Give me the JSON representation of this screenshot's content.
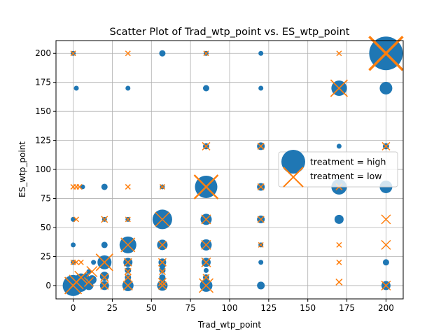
{
  "chart_data": {
    "type": "scatter",
    "title": "Scatter Plot of Trad_wtp_point vs. ES_wtp_point",
    "xlabel": "Trad_wtp_point",
    "ylabel": "ES_wtp_point",
    "xlim": [
      -11,
      211
    ],
    "ylim": [
      -11.5,
      211
    ],
    "xticks": [
      0,
      25,
      50,
      75,
      100,
      125,
      150,
      175,
      200
    ],
    "yticks": [
      0,
      25,
      50,
      75,
      100,
      125,
      150,
      175,
      200
    ],
    "grid": true,
    "legend_position": "center-right",
    "size_unit": "marker diameter (relative)",
    "series": [
      {
        "name": "treatment = high",
        "marker": "circle",
        "color": "#1f77b4",
        "points": [
          {
            "x": 0,
            "y": 200,
            "size": 7
          },
          {
            "x": 57,
            "y": 200,
            "size": 9
          },
          {
            "x": 85,
            "y": 200,
            "size": 7
          },
          {
            "x": 120,
            "y": 200,
            "size": 7
          },
          {
            "x": 200,
            "y": 200,
            "size": 48
          },
          {
            "x": 2,
            "y": 170,
            "size": 7
          },
          {
            "x": 35,
            "y": 170,
            "size": 7
          },
          {
            "x": 85,
            "y": 170,
            "size": 9
          },
          {
            "x": 120,
            "y": 170,
            "size": 7
          },
          {
            "x": 170,
            "y": 170,
            "size": 22
          },
          {
            "x": 200,
            "y": 170,
            "size": 18
          },
          {
            "x": 85,
            "y": 120,
            "size": 9
          },
          {
            "x": 120,
            "y": 120,
            "size": 11
          },
          {
            "x": 170,
            "y": 120,
            "size": 7
          },
          {
            "x": 200,
            "y": 120,
            "size": 9
          },
          {
            "x": 6,
            "y": 85,
            "size": 7
          },
          {
            "x": 20,
            "y": 85,
            "size": 9
          },
          {
            "x": 57,
            "y": 85,
            "size": 7
          },
          {
            "x": 85,
            "y": 85,
            "size": 32
          },
          {
            "x": 120,
            "y": 85,
            "size": 11
          },
          {
            "x": 170,
            "y": 85,
            "size": 22
          },
          {
            "x": 200,
            "y": 85,
            "size": 18
          },
          {
            "x": 0,
            "y": 57,
            "size": 7
          },
          {
            "x": 20,
            "y": 57,
            "size": 7
          },
          {
            "x": 35,
            "y": 57,
            "size": 7
          },
          {
            "x": 57,
            "y": 57,
            "size": 28
          },
          {
            "x": 85,
            "y": 57,
            "size": 16
          },
          {
            "x": 120,
            "y": 57,
            "size": 11
          },
          {
            "x": 170,
            "y": 57,
            "size": 13
          },
          {
            "x": 0,
            "y": 35,
            "size": 7
          },
          {
            "x": 20,
            "y": 35,
            "size": 9
          },
          {
            "x": 35,
            "y": 35,
            "size": 24
          },
          {
            "x": 57,
            "y": 35,
            "size": 15
          },
          {
            "x": 85,
            "y": 35,
            "size": 16
          },
          {
            "x": 120,
            "y": 35,
            "size": 7
          },
          {
            "x": 0,
            "y": 20,
            "size": 7
          },
          {
            "x": 13,
            "y": 20,
            "size": 7
          },
          {
            "x": 20,
            "y": 20,
            "size": 20
          },
          {
            "x": 35,
            "y": 20,
            "size": 13
          },
          {
            "x": 57,
            "y": 20,
            "size": 11
          },
          {
            "x": 85,
            "y": 20,
            "size": 13
          },
          {
            "x": 120,
            "y": 20,
            "size": 7
          },
          {
            "x": 200,
            "y": 20,
            "size": 9
          },
          {
            "x": 57,
            "y": 17,
            "size": 9
          },
          {
            "x": 35,
            "y": 13,
            "size": 9
          },
          {
            "x": 57,
            "y": 13,
            "size": 9
          },
          {
            "x": 85,
            "y": 13,
            "size": 7
          },
          {
            "x": 10,
            "y": 12,
            "size": 7
          },
          {
            "x": 8,
            "y": 8,
            "size": 9
          },
          {
            "x": 20,
            "y": 8,
            "size": 13
          },
          {
            "x": 35,
            "y": 7,
            "size": 9
          },
          {
            "x": 57,
            "y": 7,
            "size": 9
          },
          {
            "x": 85,
            "y": 7,
            "size": 9
          },
          {
            "x": 2,
            "y": 5,
            "size": 7
          },
          {
            "x": 5,
            "y": 5,
            "size": 18
          },
          {
            "x": 12,
            "y": 5,
            "size": 13
          },
          {
            "x": 35,
            "y": 3,
            "size": 9
          },
          {
            "x": 57,
            "y": 3,
            "size": 9
          },
          {
            "x": 0,
            "y": 0,
            "size": 30
          },
          {
            "x": 5,
            "y": 0,
            "size": 18
          },
          {
            "x": 10,
            "y": 0,
            "size": 13
          },
          {
            "x": 20,
            "y": 0,
            "size": 13
          },
          {
            "x": 35,
            "y": 0,
            "size": 16
          },
          {
            "x": 57,
            "y": 0,
            "size": 15
          },
          {
            "x": 85,
            "y": 0,
            "size": 18
          },
          {
            "x": 120,
            "y": 0,
            "size": 11
          },
          {
            "x": 200,
            "y": 0,
            "size": 13
          }
        ]
      },
      {
        "name": "treatment = low",
        "marker": "x",
        "color": "#ff7f0e",
        "points": [
          {
            "x": 0,
            "y": 200,
            "size": 7
          },
          {
            "x": 35,
            "y": 200,
            "size": 7
          },
          {
            "x": 85,
            "y": 200,
            "size": 7
          },
          {
            "x": 170,
            "y": 200,
            "size": 7
          },
          {
            "x": 200,
            "y": 200,
            "size": 48
          },
          {
            "x": 170,
            "y": 170,
            "size": 24
          },
          {
            "x": 85,
            "y": 120,
            "size": 11
          },
          {
            "x": 120,
            "y": 120,
            "size": 9
          },
          {
            "x": 200,
            "y": 120,
            "size": 11
          },
          {
            "x": 0,
            "y": 85,
            "size": 7
          },
          {
            "x": 2,
            "y": 85,
            "size": 7
          },
          {
            "x": 4,
            "y": 85,
            "size": 7
          },
          {
            "x": 35,
            "y": 85,
            "size": 7
          },
          {
            "x": 57,
            "y": 85,
            "size": 7
          },
          {
            "x": 85,
            "y": 85,
            "size": 34
          },
          {
            "x": 120,
            "y": 85,
            "size": 9
          },
          {
            "x": 170,
            "y": 85,
            "size": 9
          },
          {
            "x": 2,
            "y": 57,
            "size": 7
          },
          {
            "x": 20,
            "y": 57,
            "size": 9
          },
          {
            "x": 35,
            "y": 57,
            "size": 7
          },
          {
            "x": 57,
            "y": 57,
            "size": 20
          },
          {
            "x": 85,
            "y": 57,
            "size": 13
          },
          {
            "x": 120,
            "y": 57,
            "size": 9
          },
          {
            "x": 200,
            "y": 57,
            "size": 13
          },
          {
            "x": 35,
            "y": 35,
            "size": 20
          },
          {
            "x": 57,
            "y": 35,
            "size": 11
          },
          {
            "x": 85,
            "y": 35,
            "size": 13
          },
          {
            "x": 120,
            "y": 35,
            "size": 7
          },
          {
            "x": 170,
            "y": 35,
            "size": 7
          },
          {
            "x": 200,
            "y": 35,
            "size": 13
          },
          {
            "x": 0,
            "y": 20,
            "size": 7
          },
          {
            "x": 2,
            "y": 20,
            "size": 7
          },
          {
            "x": 5,
            "y": 20,
            "size": 7
          },
          {
            "x": 20,
            "y": 20,
            "size": 24
          },
          {
            "x": 35,
            "y": 20,
            "size": 11
          },
          {
            "x": 57,
            "y": 20,
            "size": 11
          },
          {
            "x": 85,
            "y": 20,
            "size": 13
          },
          {
            "x": 170,
            "y": 20,
            "size": 7
          },
          {
            "x": 12,
            "y": 12,
            "size": 15
          },
          {
            "x": 35,
            "y": 12,
            "size": 9
          },
          {
            "x": 57,
            "y": 12,
            "size": 9
          },
          {
            "x": 5,
            "y": 7,
            "size": 18
          },
          {
            "x": 20,
            "y": 7,
            "size": 11
          },
          {
            "x": 35,
            "y": 7,
            "size": 9
          },
          {
            "x": 85,
            "y": 7,
            "size": 9
          },
          {
            "x": 2,
            "y": 3,
            "size": 20
          },
          {
            "x": 10,
            "y": 3,
            "size": 13
          },
          {
            "x": 57,
            "y": 3,
            "size": 11
          },
          {
            "x": 170,
            "y": 3,
            "size": 9
          },
          {
            "x": 0,
            "y": 0,
            "size": 24
          },
          {
            "x": 20,
            "y": 0,
            "size": 11
          },
          {
            "x": 35,
            "y": 0,
            "size": 13
          },
          {
            "x": 57,
            "y": 0,
            "size": 11
          },
          {
            "x": 85,
            "y": 0,
            "size": 20
          },
          {
            "x": 200,
            "y": 0,
            "size": 13
          }
        ]
      }
    ]
  }
}
